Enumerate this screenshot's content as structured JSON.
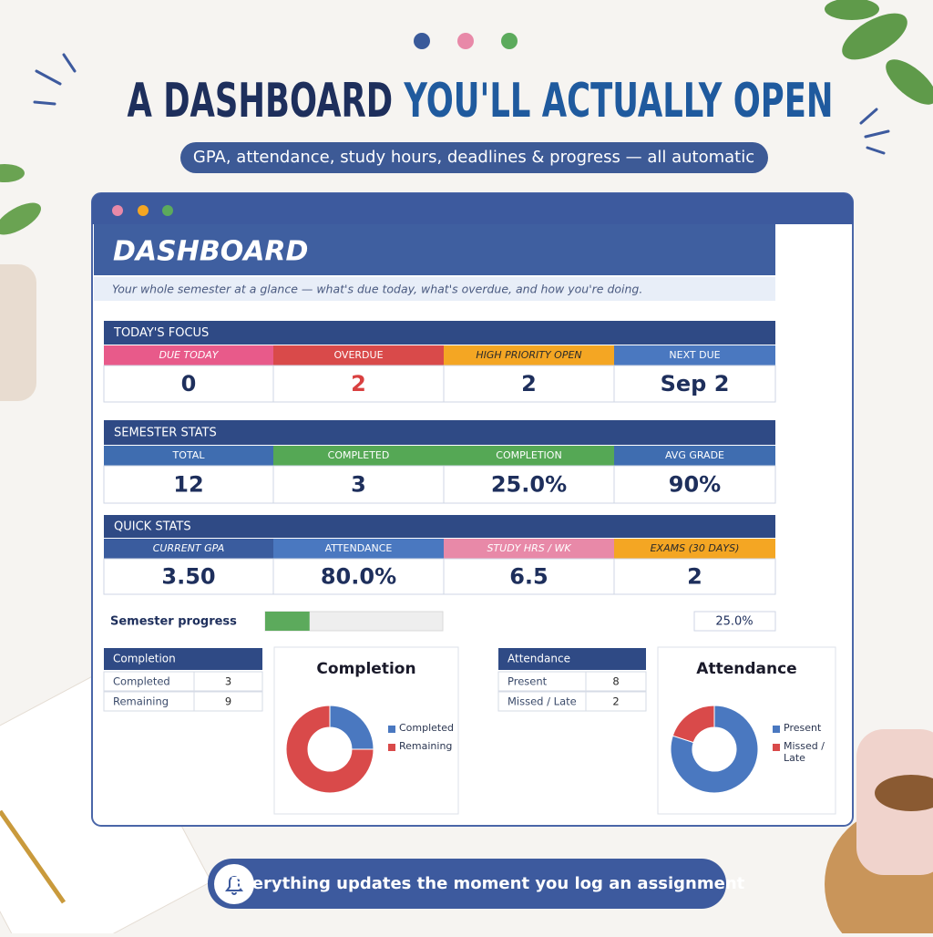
{
  "header": {
    "title_part1": "A DASHBOARD",
    "title_part2": "YOU'LL ACTUALLY OPEN",
    "subtitle": "GPA, attendance, study hours, deadlines & progress — all automatic"
  },
  "dashboard": {
    "title": "DASHBOARD",
    "subtitle": "Your whole semester at a glance — what's due today, what's overdue, and how you're doing.",
    "sections": [
      {
        "title": "TODAY'S FOCUS",
        "cards": [
          {
            "label": "DUE TODAY",
            "value": "0"
          },
          {
            "label": "OVERDUE",
            "value": "2"
          },
          {
            "label": "HIGH PRIORITY OPEN",
            "value": "2"
          },
          {
            "label": "NEXT DUE",
            "value": "Sep 2"
          }
        ]
      },
      {
        "title": "SEMESTER STATS",
        "cards": [
          {
            "label": "TOTAL",
            "value": "12"
          },
          {
            "label": "COMPLETED",
            "value": "3"
          },
          {
            "label": "COMPLETION",
            "value": "25.0%"
          },
          {
            "label": "AVG GRADE",
            "value": "90%"
          }
        ]
      },
      {
        "title": "QUICK STATS",
        "cards": [
          {
            "label": "CURRENT GPA",
            "value": "3.50"
          },
          {
            "label": "ATTENDANCE",
            "value": "80.0%"
          },
          {
            "label": "STUDY HRS / WK",
            "value": "6.5"
          },
          {
            "label": "EXAMS (30 DAYS)",
            "value": "2"
          }
        ]
      }
    ],
    "progress": {
      "label": "Semester progress",
      "value": 25,
      "value_label": "25.0%",
      "range": [
        0,
        100
      ]
    },
    "tables": [
      {
        "title": "Completion",
        "rows": [
          [
            "Completed",
            3
          ],
          [
            "Remaining",
            9
          ]
        ],
        "chart_title": "Completion"
      },
      {
        "title": "Attendance",
        "rows": [
          [
            "Present",
            8
          ],
          [
            "Missed / Late",
            2
          ]
        ],
        "chart_title": "Attendance"
      }
    ]
  },
  "footer": "Everything updates the moment you log an assignment"
}
